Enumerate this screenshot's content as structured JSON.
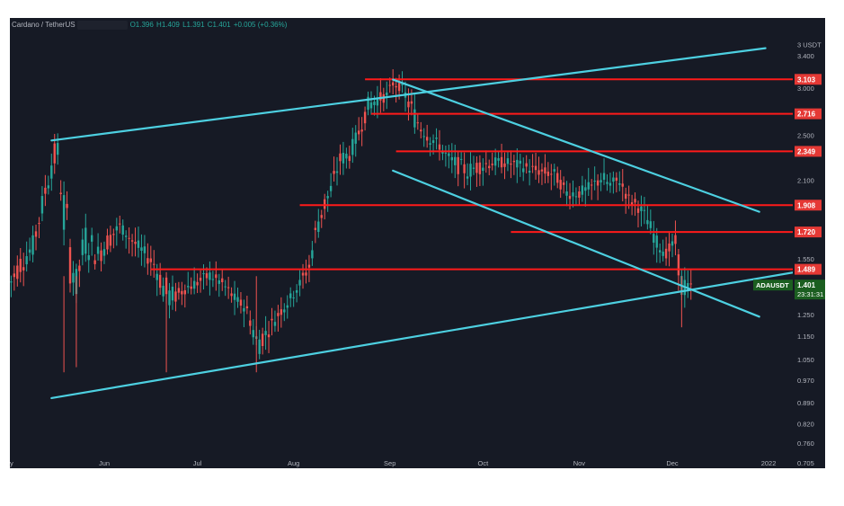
{
  "symbol_bar": {
    "pair": "Cardano / TetherUS",
    "open": "O1.396",
    "high": "H1.409",
    "low": "L1.391",
    "close": "C1.401",
    "change": "+0.005 (+0.36%)"
  },
  "price_axis": {
    "unit": "3 USDT",
    "ticks": [
      "3.400",
      "3.000",
      "2.500",
      "2.100",
      "1.550",
      "1.250",
      "1.150",
      "1.050",
      "0.970",
      "0.890",
      "0.820",
      "0.760",
      "0.705"
    ],
    "tick_values": [
      3.4,
      3.0,
      2.5,
      2.1,
      1.55,
      1.25,
      1.15,
      1.05,
      0.97,
      0.89,
      0.82,
      0.76,
      0.705
    ]
  },
  "time_axis": {
    "start_fragment": "y",
    "labels": [
      "Jun",
      "Jul",
      "Aug",
      "Sep",
      "Oct",
      "Nov",
      "Dec",
      "2022"
    ],
    "dates": [
      "2021-06-01",
      "2021-07-01",
      "2021-08-01",
      "2021-09-01",
      "2021-10-01",
      "2021-11-01",
      "2021-12-01",
      "2022-01-01"
    ]
  },
  "current_price": {
    "symbol": "ADAUSDT",
    "value": "1.401",
    "countdown": "23:31:31",
    "color": "#1b5e20"
  },
  "colors": {
    "background": "#161a25",
    "up_candle": "#26a69a",
    "down_candle": "#ef5350",
    "trendline": "#4dd0e1",
    "level_line": "#ff1a1a",
    "label_bg": "#e53935"
  },
  "chart_data": {
    "type": "candlestick",
    "title": "Cardano / TetherUS",
    "ylabel": "USDT",
    "yscale": "log",
    "ylim": [
      0.69,
      3.6
    ],
    "xlim": [
      "2021-05-01",
      "2022-01-12"
    ],
    "horizontal_levels": [
      {
        "value": 3.103,
        "label": "3.103",
        "from": "2021-08-24"
      },
      {
        "value": 2.716,
        "label": "2.716",
        "from": "2021-08-26"
      },
      {
        "value": 2.349,
        "label": "2.349",
        "from": "2021-09-03"
      },
      {
        "value": 1.908,
        "label": "1.908",
        "from": "2021-08-03"
      },
      {
        "value": 1.72,
        "label": "1.720",
        "from": "2021-10-10"
      },
      {
        "value": 1.489,
        "label": "1.489",
        "from": "2021-06-16"
      }
    ],
    "trendlines": [
      {
        "name": "upper-channel",
        "points": [
          [
            "2021-05-15",
            2.45
          ],
          [
            "2021-12-31",
            3.5
          ]
        ]
      },
      {
        "name": "lower-channel",
        "points": [
          [
            "2021-05-15",
            0.905
          ],
          [
            "2022-01-12",
            1.48
          ]
        ]
      },
      {
        "name": "falling-top",
        "points": [
          [
            "2021-09-02",
            3.1
          ],
          [
            "2021-12-29",
            1.86
          ]
        ]
      },
      {
        "name": "falling-bottom",
        "points": [
          [
            "2021-09-02",
            2.18
          ],
          [
            "2021-12-29",
            1.24
          ]
        ]
      }
    ],
    "series": [
      {
        "name": "ADAUSDT",
        "points": [
          [
            "2021-05-01",
            1.35,
            1.42
          ],
          [
            "2021-05-05",
            1.45,
            1.6
          ],
          [
            "2021-05-09",
            1.55,
            1.7
          ],
          [
            "2021-05-12",
            1.8,
            2.0
          ],
          [
            "2021-05-15",
            2.1,
            2.4
          ],
          [
            "2021-05-17",
            2.2,
            2.47
          ],
          [
            "2021-05-19",
            1.6,
            2.1
          ],
          [
            "2021-05-21",
            1.4,
            1.8
          ],
          [
            "2021-05-23",
            1.3,
            1.5
          ],
          [
            "2021-05-26",
            1.55,
            1.8
          ],
          [
            "2021-05-30",
            1.5,
            1.65
          ],
          [
            "2021-06-03",
            1.62,
            1.75
          ],
          [
            "2021-06-06",
            1.72,
            1.8
          ],
          [
            "2021-06-09",
            1.65,
            1.72
          ],
          [
            "2021-06-13",
            1.55,
            1.65
          ],
          [
            "2021-06-17",
            1.48,
            1.56
          ],
          [
            "2021-06-21",
            1.25,
            1.45
          ],
          [
            "2021-06-24",
            1.3,
            1.38
          ],
          [
            "2021-06-27",
            1.35,
            1.42
          ],
          [
            "2021-07-01",
            1.38,
            1.45
          ],
          [
            "2021-07-05",
            1.42,
            1.49
          ],
          [
            "2021-07-09",
            1.38,
            1.44
          ],
          [
            "2021-07-13",
            1.3,
            1.36
          ],
          [
            "2021-07-17",
            1.25,
            1.3
          ],
          [
            "2021-07-20",
            1.05,
            1.2
          ],
          [
            "2021-07-23",
            1.12,
            1.2
          ],
          [
            "2021-07-27",
            1.22,
            1.28
          ],
          [
            "2021-07-31",
            1.3,
            1.36
          ],
          [
            "2021-08-03",
            1.38,
            1.44
          ],
          [
            "2021-08-06",
            1.46,
            1.55
          ],
          [
            "2021-08-09",
            1.7,
            1.9
          ],
          [
            "2021-08-13",
            1.95,
            2.1
          ],
          [
            "2021-08-16",
            2.2,
            2.35
          ],
          [
            "2021-08-19",
            2.25,
            2.4
          ],
          [
            "2021-08-22",
            2.45,
            2.6
          ],
          [
            "2021-08-25",
            2.7,
            2.9
          ],
          [
            "2021-08-28",
            2.8,
            2.95
          ],
          [
            "2021-08-31",
            2.85,
            2.98
          ],
          [
            "2021-09-02",
            3.0,
            3.1
          ],
          [
            "2021-09-05",
            2.95,
            3.05
          ],
          [
            "2021-09-08",
            2.6,
            2.9
          ],
          [
            "2021-09-11",
            2.5,
            2.65
          ],
          [
            "2021-09-14",
            2.4,
            2.55
          ],
          [
            "2021-09-17",
            2.35,
            2.45
          ],
          [
            "2021-09-20",
            2.2,
            2.35
          ],
          [
            "2021-09-23",
            2.15,
            2.3
          ],
          [
            "2021-09-26",
            2.1,
            2.25
          ],
          [
            "2021-09-30",
            2.15,
            2.3
          ],
          [
            "2021-10-04",
            2.2,
            2.3
          ],
          [
            "2021-10-08",
            2.2,
            2.3
          ],
          [
            "2021-10-12",
            2.18,
            2.28
          ],
          [
            "2021-10-16",
            2.15,
            2.25
          ],
          [
            "2021-10-20",
            2.12,
            2.22
          ],
          [
            "2021-10-24",
            2.1,
            2.2
          ],
          [
            "2021-10-28",
            1.95,
            2.05
          ],
          [
            "2021-11-01",
            1.95,
            2.05
          ],
          [
            "2021-11-05",
            1.98,
            2.1
          ],
          [
            "2021-11-08",
            2.05,
            2.2
          ],
          [
            "2021-11-11",
            2.0,
            2.12
          ],
          [
            "2021-11-14",
            2.05,
            2.15
          ],
          [
            "2021-11-17",
            1.9,
            2.0
          ],
          [
            "2021-11-20",
            1.85,
            1.95
          ],
          [
            "2021-11-23",
            1.75,
            1.85
          ],
          [
            "2021-11-26",
            1.6,
            1.7
          ],
          [
            "2021-11-29",
            1.55,
            1.62
          ],
          [
            "2021-12-02",
            1.6,
            1.7
          ],
          [
            "2021-12-04",
            1.3,
            1.5
          ],
          [
            "2021-12-06",
            1.35,
            1.42
          ],
          [
            "2021-12-08",
            1.38,
            1.42
          ]
        ]
      }
    ],
    "series_format": "[date, close_low, close_high] approximate price band"
  }
}
